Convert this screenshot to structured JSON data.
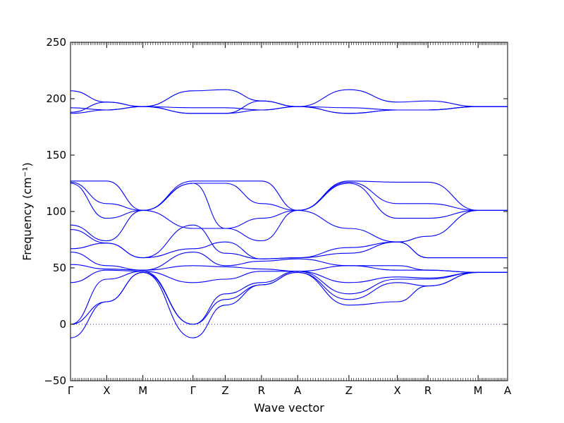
{
  "chart_data": {
    "type": "line",
    "title": "",
    "xlabel": "Wave vector",
    "ylabel": "Frequency (cm⁻¹)",
    "ylim": [
      -50,
      250
    ],
    "y_ticks": [
      -50,
      0,
      50,
      100,
      150,
      200,
      250
    ],
    "y_tick_labels": [
      "−50",
      "0",
      "50",
      "100",
      "150",
      "200",
      "250"
    ],
    "x_ticks": [
      {
        "label": "Γ",
        "x": 0
      },
      {
        "label": "X",
        "x": 0.65
      },
      {
        "label": "M",
        "x": 1.3
      },
      {
        "label": "Γ",
        "x": 2.2
      },
      {
        "label": "Z",
        "x": 2.78
      },
      {
        "label": "R",
        "x": 3.43
      },
      {
        "label": "A",
        "x": 4.08
      },
      {
        "label": "Z",
        "x": 5.0
      },
      {
        "label": "X",
        "x": 5.87
      },
      {
        "label": "R",
        "x": 6.42
      },
      {
        "label": "M",
        "x": 7.32
      },
      {
        "label": "A",
        "x": 7.85
      }
    ],
    "xlim": [
      0,
      7.85
    ],
    "grid": false,
    "legend": "none",
    "color": "#0000ff",
    "zero_line": true,
    "series": [
      {
        "x": [
          0,
          0.65,
          1.3,
          2.2,
          2.78,
          3.43,
          4.08,
          5.0,
          5.87,
          6.42,
          7.32,
          7.85
        ],
        "y": [
          207,
          197,
          193,
          207,
          208,
          198,
          193,
          208,
          197,
          198,
          193,
          193
        ]
      },
      {
        "x": [
          0,
          0.65,
          1.3,
          2.2,
          2.78,
          3.43,
          4.08,
          5.0,
          5.87,
          6.42,
          7.32,
          7.85
        ],
        "y": [
          192,
          190,
          193,
          192,
          192,
          190,
          193,
          192,
          190,
          190,
          193,
          193
        ]
      },
      {
        "x": [
          0,
          0.65,
          1.3,
          2.2,
          2.78,
          3.43,
          4.08,
          5.0,
          5.87,
          6.42,
          7.32,
          7.85
        ],
        "y": [
          188,
          197,
          193,
          187,
          187,
          198,
          193,
          187,
          190,
          190,
          193,
          193
        ]
      },
      {
        "x": [
          0,
          0.65,
          1.3,
          2.2,
          2.78,
          3.43,
          4.08,
          5.0,
          5.87,
          6.42,
          7.32,
          7.85
        ],
        "y": [
          187,
          190,
          193,
          187,
          187,
          190,
          193,
          187,
          190,
          190,
          193,
          193
        ]
      },
      {
        "x": [
          0,
          0.65,
          1.3,
          2.2,
          2.78,
          3.43,
          4.08,
          5.0,
          5.87,
          6.42,
          7.32,
          7.85
        ],
        "y": [
          127,
          127,
          101,
          127,
          127,
          127,
          101,
          127,
          126,
          126,
          101,
          101
        ]
      },
      {
        "x": [
          0,
          0.65,
          1.3,
          2.2,
          2.78,
          3.43,
          4.08,
          5.0,
          5.87,
          6.42,
          7.32,
          7.85
        ],
        "y": [
          126,
          107,
          101,
          125,
          125,
          107,
          101,
          126,
          107,
          107,
          101,
          101
        ]
      },
      {
        "x": [
          0,
          0.65,
          1.3,
          2.2,
          2.78,
          3.43,
          4.08,
          5.0,
          5.87,
          6.42,
          7.32,
          7.85
        ],
        "y": [
          125,
          94,
          101,
          125,
          85,
          94,
          101,
          125,
          94,
          94,
          101,
          101
        ]
      },
      {
        "x": [
          0,
          0.65,
          1.3,
          2.2,
          2.78,
          3.43,
          4.08,
          5.0,
          5.87,
          6.42,
          7.32,
          7.85
        ],
        "y": [
          88,
          74,
          101,
          85,
          85,
          74,
          101,
          85,
          73,
          78,
          101,
          101
        ]
      },
      {
        "x": [
          0,
          0.65,
          1.3,
          2.2,
          2.78,
          3.43,
          4.08,
          5.0,
          5.87,
          6.42,
          7.32,
          7.85
        ],
        "y": [
          84,
          72,
          59,
          88,
          63,
          58,
          59,
          63,
          73,
          59,
          59,
          59
        ]
      },
      {
        "x": [
          0,
          0.65,
          1.3,
          2.2,
          2.78,
          3.43,
          4.08,
          5.0,
          5.87,
          6.42,
          7.32,
          7.85
        ],
        "y": [
          67,
          72,
          59,
          67,
          73,
          58,
          59,
          68,
          73,
          59,
          59,
          59
        ]
      },
      {
        "x": [
          0,
          0.65,
          1.3,
          2.2,
          2.78,
          3.43,
          4.08,
          5.0,
          5.87,
          6.42,
          7.32,
          7.85
        ],
        "y": [
          64,
          52,
          48,
          64,
          52,
          56,
          58,
          52,
          52,
          48,
          46,
          46
        ]
      },
      {
        "x": [
          0,
          0.65,
          1.3,
          2.2,
          2.78,
          3.43,
          4.08,
          5.0,
          5.87,
          6.42,
          7.32,
          7.85
        ],
        "y": [
          53,
          49,
          48,
          52,
          51,
          49,
          47,
          52,
          48,
          48,
          46,
          46
        ]
      },
      {
        "x": [
          0,
          0.65,
          1.3,
          2.2,
          2.78,
          3.43,
          4.08,
          5.0,
          5.87,
          6.42,
          7.32,
          7.85
        ],
        "y": [
          37,
          48,
          47,
          37,
          40,
          47,
          47,
          37,
          42,
          41,
          46,
          46
        ]
      },
      {
        "x": [
          0,
          0.65,
          1.3,
          2.2,
          2.78,
          3.43,
          4.08,
          5.0,
          5.87,
          6.42,
          7.32,
          7.85
        ],
        "y": [
          0,
          40,
          47,
          0,
          27,
          37,
          47,
          27,
          40,
          40,
          46,
          46
        ]
      },
      {
        "x": [
          0,
          0.65,
          1.3,
          2.2,
          2.78,
          3.43,
          4.08,
          5.0,
          5.87,
          6.42,
          7.32,
          7.85
        ],
        "y": [
          0,
          20,
          46,
          0,
          22,
          35,
          46,
          22,
          37,
          34,
          46,
          46
        ]
      },
      {
        "x": [
          0,
          0.65,
          1.3,
          2.2,
          2.78,
          3.43,
          4.08,
          5.0,
          5.87,
          6.42,
          7.32,
          7.85
        ],
        "y": [
          -12,
          20,
          46,
          -12,
          17,
          35,
          46,
          17,
          20,
          34,
          46,
          46
        ]
      }
    ]
  }
}
